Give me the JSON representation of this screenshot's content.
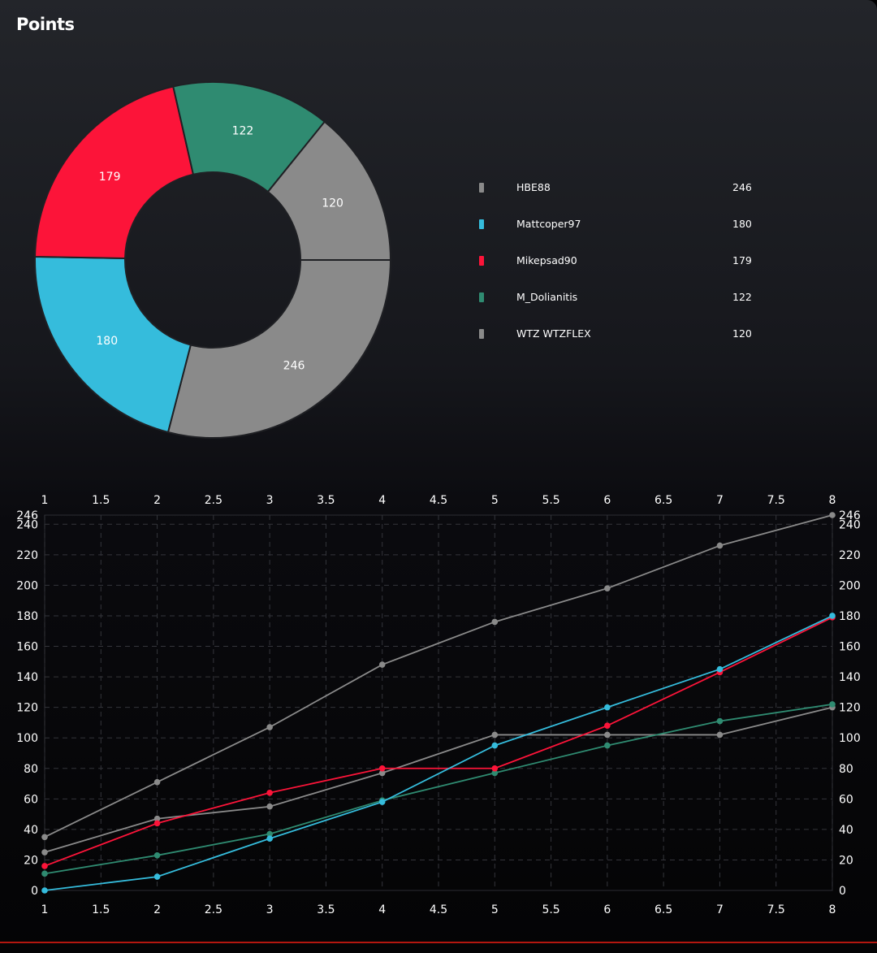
{
  "header": {
    "title": "Points"
  },
  "colors": {
    "HBE88": "#8a8a8a",
    "Mattcoper97": "#35bcdc",
    "Mikepsad90": "#fc1439",
    "M_Dolianitis": "#2f8b71",
    "WTZ WTZFLEX": "#8a8a8a",
    "accent_rule": "#b3170f"
  },
  "chart_data": [
    {
      "type": "pie",
      "donut": true,
      "title": "",
      "legend_position": "right",
      "slices": [
        {
          "name": "HBE88",
          "value": 246,
          "label": "246"
        },
        {
          "name": "Mattcoper97",
          "value": 180,
          "label": "180"
        },
        {
          "name": "Mikepsad90",
          "value": 179,
          "label": "179"
        },
        {
          "name": "M_Dolianitis",
          "value": 122,
          "label": "122"
        },
        {
          "name": "WTZ WTZFLEX",
          "value": 120,
          "label": "120"
        }
      ]
    },
    {
      "type": "line",
      "title": "",
      "xlabel": "",
      "ylabel": "",
      "grid": true,
      "xlim": [
        1,
        8
      ],
      "ylim": [
        0,
        246
      ],
      "xticks": [
        "1",
        "1.5",
        "2",
        "2.5",
        "3",
        "3.5",
        "4",
        "4.5",
        "5",
        "5.5",
        "6",
        "6.5",
        "7",
        "7.5",
        "8"
      ],
      "yticks": [
        "0",
        "20",
        "40",
        "60",
        "80",
        "100",
        "120",
        "140",
        "160",
        "180",
        "200",
        "220",
        "240",
        "246"
      ],
      "x": [
        1,
        2,
        3,
        4,
        5,
        6,
        7,
        8
      ],
      "series": [
        {
          "name": "HBE88",
          "values": [
            35,
            71,
            107,
            148,
            176,
            198,
            226,
            246
          ]
        },
        {
          "name": "WTZ WTZFLEX",
          "values": [
            25,
            47,
            55,
            77,
            102,
            102,
            102,
            120
          ]
        },
        {
          "name": "M_Dolianitis",
          "values": [
            11,
            23,
            37,
            59,
            77,
            95,
            111,
            122
          ]
        },
        {
          "name": "Mikepsad90",
          "values": [
            16,
            44,
            64,
            80,
            80,
            108,
            143,
            179
          ]
        },
        {
          "name": "Mattcoper97",
          "values": [
            0,
            9,
            34,
            58,
            95,
            120,
            145,
            180
          ]
        }
      ]
    }
  ]
}
